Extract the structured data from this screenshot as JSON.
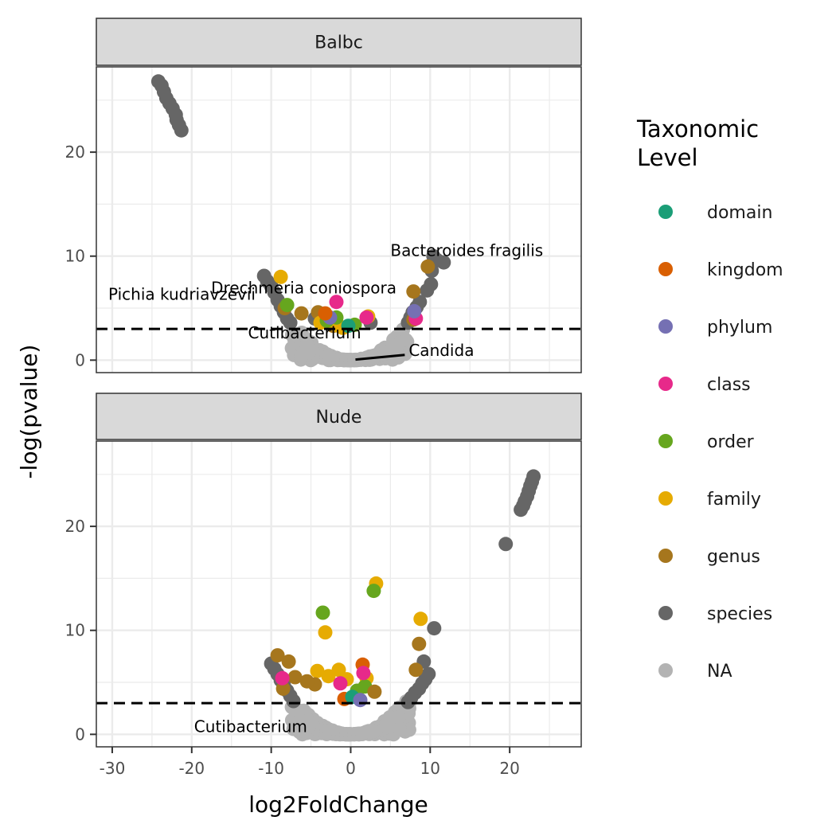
{
  "chart_data": {
    "type": "scatter",
    "xlabel": "log2FoldChange",
    "ylabel": "-log(pvalue)",
    "xlim": [
      -32,
      29
    ],
    "ylim": [
      -1.2,
      28.2
    ],
    "x_ticks": [
      -30,
      -20,
      -10,
      0,
      10,
      20
    ],
    "x_tick_labels": [
      "-30",
      "-20",
      "-10",
      "0",
      "10",
      "20"
    ],
    "y_ticks": [
      0,
      10,
      20
    ],
    "y_tick_labels": [
      "0",
      "10",
      "20"
    ],
    "threshold_line_y": 3,
    "grid": true,
    "legend": {
      "title_lines": [
        "Taxonomic",
        "Level"
      ],
      "placement": "right",
      "items": [
        {
          "label": "domain",
          "color": "#1B9E77"
        },
        {
          "label": "kingdom",
          "color": "#D95F02"
        },
        {
          "label": "phylum",
          "color": "#7570B3"
        },
        {
          "label": "class",
          "color": "#E7298A"
        },
        {
          "label": "order",
          "color": "#66A61E"
        },
        {
          "label": "family",
          "color": "#E6AB02"
        },
        {
          "label": "genus",
          "color": "#A6761D"
        },
        {
          "label": "species",
          "color": "#666666"
        },
        {
          "label": "NA",
          "color": "#B3B3B3"
        }
      ]
    },
    "panels": [
      {
        "name": "Balbc",
        "series": [
          {
            "level": "species",
            "points": [
              [
                -24.2,
                26.8
              ],
              [
                -23.8,
                26.4
              ],
              [
                -23.5,
                25.8
              ],
              [
                -23.2,
                25.2
              ],
              [
                -22.8,
                24.7
              ],
              [
                -22.4,
                24.2
              ],
              [
                -22.0,
                23.6
              ],
              [
                -21.9,
                23.1
              ],
              [
                -21.6,
                22.6
              ],
              [
                -21.3,
                22.1
              ],
              [
                -10.9,
                8.1
              ],
              [
                -10.5,
                7.6
              ],
              [
                -10.0,
                7.1
              ],
              [
                -9.6,
                6.5
              ],
              [
                -9.2,
                5.8
              ],
              [
                -8.8,
                5.2
              ],
              [
                -8.4,
                4.6
              ],
              [
                -8.0,
                4.0
              ],
              [
                -7.6,
                3.6
              ],
              [
                10.4,
                10.0
              ],
              [
                10.9,
                9.6
              ],
              [
                11.7,
                9.4
              ],
              [
                10.2,
                8.6
              ],
              [
                10.1,
                7.3
              ],
              [
                9.6,
                6.7
              ],
              [
                8.7,
                5.6
              ],
              [
                8.3,
                5.1
              ],
              [
                7.8,
                4.6
              ],
              [
                7.5,
                4.1
              ],
              [
                7.2,
                3.6
              ],
              [
                -4.5,
                4.0
              ],
              [
                2.5,
                3.6
              ]
            ]
          },
          {
            "level": "genus",
            "points": [
              [
                9.7,
                9.0
              ],
              [
                7.9,
                6.6
              ],
              [
                -6.2,
                4.5
              ],
              [
                -4.1,
                4.6
              ],
              [
                -3.3,
                4.3
              ],
              [
                -2.2,
                3.3
              ],
              [
                7.9,
                3.9
              ],
              [
                -8.3,
                5.0
              ]
            ]
          },
          {
            "level": "family",
            "points": [
              [
                -8.8,
                8.0
              ],
              [
                -2.3,
                3.6
              ],
              [
                -1.5,
                3.3
              ],
              [
                -1.0,
                3.1
              ],
              [
                -3.8,
                3.6
              ],
              [
                2.2,
                4.2
              ]
            ]
          },
          {
            "level": "order",
            "points": [
              [
                -8.0,
                5.3
              ],
              [
                -1.8,
                4.1
              ],
              [
                0.5,
                3.4
              ],
              [
                -3.0,
                3.8
              ]
            ]
          },
          {
            "level": "class",
            "points": [
              [
                -1.8,
                5.6
              ],
              [
                2.0,
                4.1
              ],
              [
                8.2,
                4.0
              ]
            ]
          },
          {
            "level": "phylum",
            "points": [
              [
                8.0,
                4.7
              ],
              [
                -2.6,
                4.1
              ]
            ]
          },
          {
            "level": "kingdom",
            "points": [
              [
                -3.2,
                4.5
              ]
            ]
          },
          {
            "level": "domain",
            "points": [
              [
                -0.3,
                3.3
              ]
            ]
          }
        ],
        "annotations": [
          {
            "text": "Bacteroides fragilis",
            "x": 5.0,
            "y": 10.0,
            "anchor": "start"
          },
          {
            "text": "Drechmeria coniospora",
            "x": -5.9,
            "y": 6.4,
            "anchor": "middle"
          },
          {
            "text": "Pichia kudriavzevii",
            "x": -30.5,
            "y": 5.8,
            "anchor": "start"
          },
          {
            "text": "Cutibacterium",
            "x": -5.8,
            "y": 2.1,
            "anchor": "middle"
          },
          {
            "text": "Candida",
            "x": 7.3,
            "y": 0.4,
            "anchor": "start",
            "line_from": [
              0.6,
              0.05
            ],
            "line_to": [
              6.8,
              0.5
            ]
          }
        ]
      },
      {
        "name": "Nude",
        "series": [
          {
            "level": "species",
            "points": [
              [
                23.0,
                24.8
              ],
              [
                22.8,
                24.3
              ],
              [
                22.6,
                23.9
              ],
              [
                22.4,
                23.4
              ],
              [
                22.2,
                22.9
              ],
              [
                21.9,
                22.4
              ],
              [
                21.7,
                22.0
              ],
              [
                21.4,
                21.6
              ],
              [
                19.5,
                18.3
              ],
              [
                10.5,
                10.2
              ],
              [
                -10.0,
                6.8
              ],
              [
                -9.6,
                6.3
              ],
              [
                -9.2,
                5.8
              ],
              [
                -8.8,
                5.2
              ],
              [
                -8.4,
                4.7
              ],
              [
                -8.0,
                4.2
              ],
              [
                -7.6,
                3.7
              ],
              [
                -7.2,
                3.2
              ],
              [
                9.8,
                5.8
              ],
              [
                9.4,
                5.3
              ],
              [
                9.0,
                4.9
              ],
              [
                8.6,
                4.4
              ],
              [
                8.1,
                4.0
              ],
              [
                7.6,
                3.5
              ],
              [
                7.2,
                3.1
              ],
              [
                9.2,
                7.0
              ]
            ]
          },
          {
            "level": "family",
            "points": [
              [
                3.2,
                14.5
              ],
              [
                8.8,
                11.1
              ],
              [
                -3.2,
                9.8
              ],
              [
                -4.2,
                6.1
              ],
              [
                -1.5,
                6.2
              ],
              [
                -2.8,
                5.6
              ],
              [
                -0.5,
                5.3
              ],
              [
                2.0,
                5.4
              ]
            ]
          },
          {
            "level": "order",
            "points": [
              [
                2.9,
                13.8
              ],
              [
                -3.5,
                11.7
              ],
              [
                0.8,
                4.2
              ],
              [
                1.8,
                4.6
              ]
            ]
          },
          {
            "level": "genus",
            "points": [
              [
                8.6,
                8.7
              ],
              [
                -9.2,
                7.6
              ],
              [
                -7.8,
                7.0
              ],
              [
                -7.0,
                5.5
              ],
              [
                3.0,
                4.1
              ],
              [
                -4.5,
                4.8
              ],
              [
                -5.5,
                5.1
              ],
              [
                8.2,
                6.2
              ],
              [
                -8.5,
                4.4
              ]
            ]
          },
          {
            "level": "kingdom",
            "points": [
              [
                1.5,
                6.7
              ],
              [
                -0.8,
                3.4
              ]
            ]
          },
          {
            "level": "class",
            "points": [
              [
                -1.3,
                4.9
              ],
              [
                1.6,
                5.9
              ],
              [
                -8.6,
                5.4
              ]
            ]
          },
          {
            "level": "domain",
            "points": [
              [
                0.2,
                3.6
              ]
            ]
          },
          {
            "level": "phylum",
            "points": [
              [
                1.2,
                3.3
              ]
            ]
          }
        ],
        "annotations": [
          {
            "text": "Cutibacterium",
            "x": -19.7,
            "y": 0.2,
            "anchor": "start"
          }
        ]
      }
    ]
  }
}
